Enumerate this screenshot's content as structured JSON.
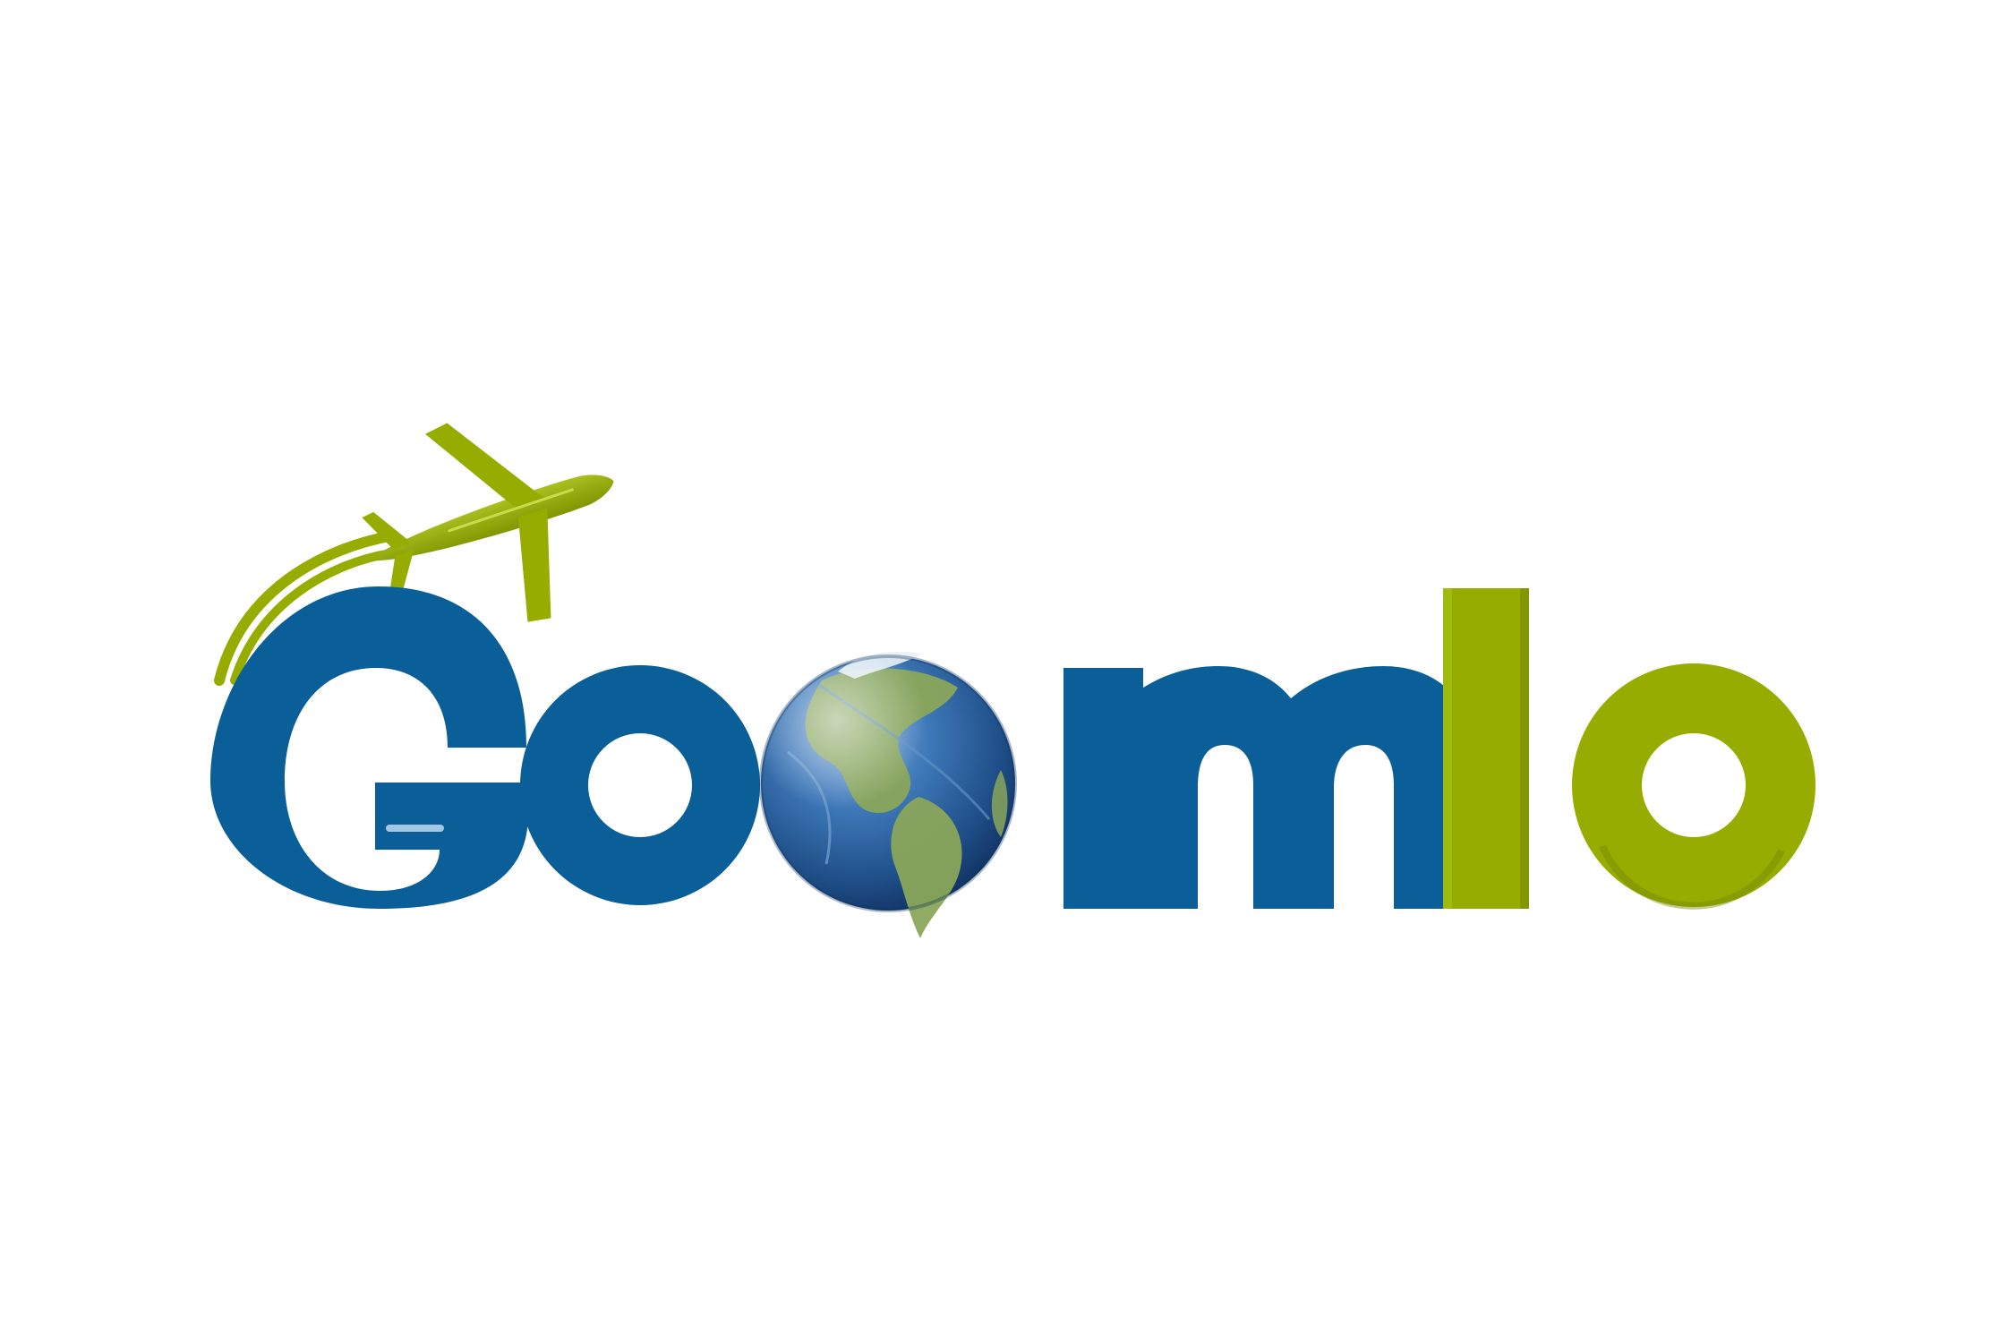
{
  "brand": {
    "wordmark": "Goomlo",
    "icons": [
      "airplane-icon",
      "globe-icon"
    ]
  },
  "colors": {
    "background": "#ffffff",
    "blue": "#0b5f98",
    "blue_dark": "#084a78",
    "green": "#96ad00",
    "green_dark": "#758700",
    "ocean": "#2b66a8",
    "land": "#8aa65a"
  }
}
